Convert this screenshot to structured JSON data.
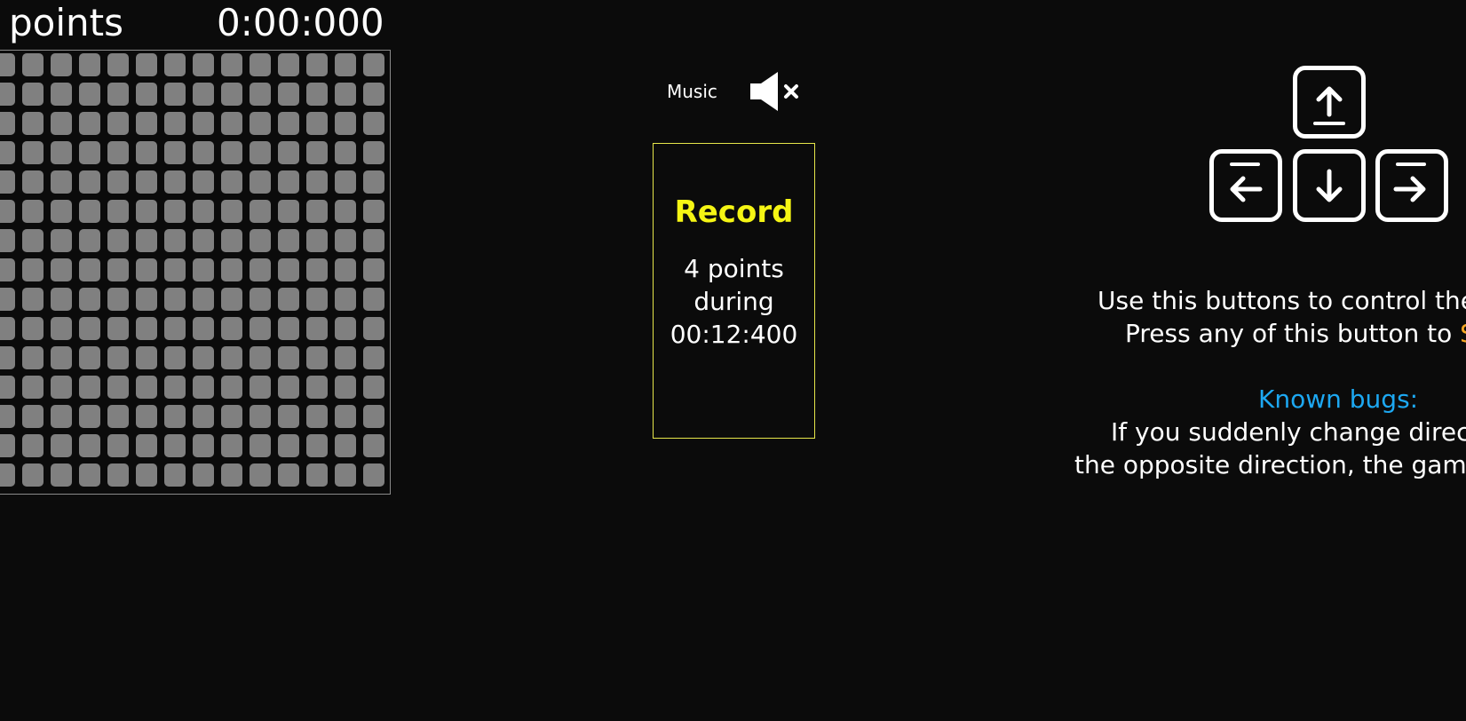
{
  "header": {
    "score_label": "points",
    "timer": "0:00:000"
  },
  "board": {
    "columns": 14,
    "rows": 15,
    "cell_color": "#808080",
    "border_color": "#8a8a8a"
  },
  "music": {
    "label": "Music",
    "icon": "speaker-muted-icon"
  },
  "record": {
    "title": "Record",
    "points": "4 points",
    "during": "during",
    "time": "00:12:400",
    "title_color": "#f5f514",
    "border_color": "#e6e64a"
  },
  "controls": {
    "keys": [
      {
        "name": "up",
        "icon": "arrow-up-icon"
      },
      {
        "name": "left",
        "icon": "arrow-left-icon"
      },
      {
        "name": "down",
        "icon": "arrow-down-icon"
      },
      {
        "name": "right",
        "icon": "arrow-right-icon"
      }
    ]
  },
  "help": {
    "line1": "Use this buttons to control the",
    "line2_prefix": "Press any of this button to ",
    "line2_start": "S",
    "start_color": "#f5a623",
    "bugs_title": "Known bugs:",
    "bugs_color": "#1da8f2",
    "bugs_line1": "If you suddenly change direc",
    "bugs_line2": "the opposite direction, the game"
  }
}
